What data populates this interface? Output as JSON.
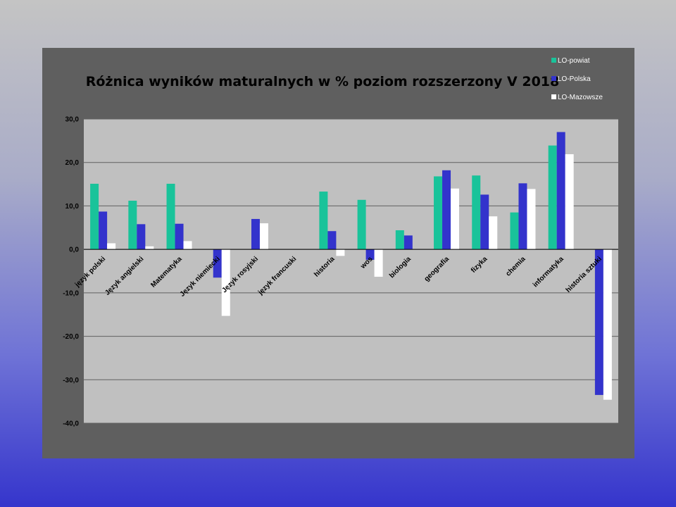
{
  "chart_data": {
    "type": "bar",
    "title": "Różnica wyników maturalnych w % poziom rozszerzony V 2018",
    "categories": [
      "język polski",
      "Język angielski",
      "Matematyka",
      "Język niemiecki",
      "Język rosyjski",
      "język francuski",
      "historia",
      "wos",
      "biologia",
      "geografia",
      "fizyka",
      "chemia",
      "informatyka",
      "historia sztuki"
    ],
    "series": [
      {
        "name": "LO-powiat",
        "color": "#19c39a",
        "values": [
          15.1,
          11.2,
          15.1,
          null,
          null,
          null,
          13.3,
          11.4,
          4.4,
          16.8,
          17.0,
          8.5,
          23.9,
          null
        ]
      },
      {
        "name": "LO-Polska",
        "color": "#3333cc",
        "values": [
          8.7,
          5.8,
          5.9,
          -6.5,
          7.0,
          null,
          4.2,
          -2.4,
          3.2,
          18.2,
          12.6,
          15.2,
          27.0,
          -33.5
        ]
      },
      {
        "name": "LO-Mazowsze",
        "color": "#ffffff",
        "values": [
          1.4,
          0.7,
          1.9,
          -15.3,
          6.0,
          null,
          -1.5,
          -6.3,
          null,
          14.0,
          7.6,
          13.9,
          21.9,
          -34.6
        ]
      }
    ],
    "yticks": [
      "30,0",
      "20,0",
      "10,0",
      "0,0",
      "-10,0",
      "-20,0",
      "-30,0",
      "-40,0"
    ],
    "ylim": [
      -40,
      30
    ],
    "grid": true,
    "legend": "top-right",
    "plot_background": "#c0c0c0"
  }
}
